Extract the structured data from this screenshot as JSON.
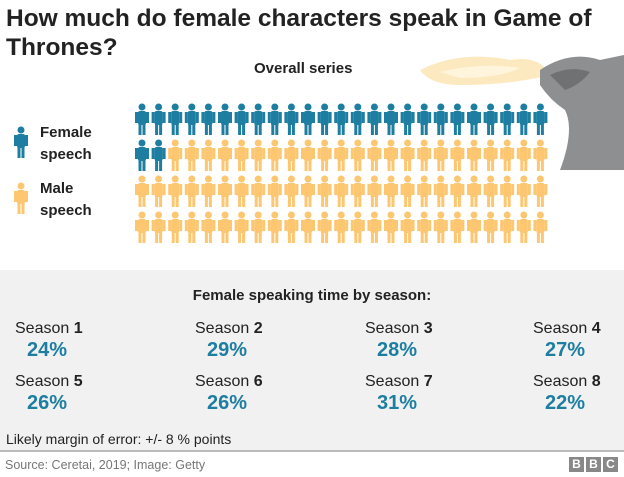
{
  "title": "How much do female characters speak in Game of Thrones?",
  "subtitle": "Overall series",
  "legend": {
    "female": "Female speech",
    "male": "Male speech"
  },
  "colors": {
    "female": "#1d7ea1",
    "male": "#fdc772"
  },
  "chart_data": {
    "type": "pictogram",
    "title": "Overall series",
    "total_icons": 100,
    "columns": 25,
    "rows": 4,
    "series": [
      {
        "name": "Female speech",
        "value": 27
      },
      {
        "name": "Male speech",
        "value": 73
      }
    ]
  },
  "panel": {
    "title": "Female speaking time by season:",
    "seasons": [
      {
        "label": "Season ",
        "num": "1",
        "pct": "24%"
      },
      {
        "label": "Season ",
        "num": "2",
        "pct": "29%"
      },
      {
        "label": "Season ",
        "num": "3",
        "pct": "28%"
      },
      {
        "label": "Season ",
        "num": "4",
        "pct": "27%"
      },
      {
        "label": "Season ",
        "num": "5",
        "pct": "26%"
      },
      {
        "label": "Season ",
        "num": "6",
        "pct": "26%"
      },
      {
        "label": "Season ",
        "num": "7",
        "pct": "31%"
      },
      {
        "label": "Season ",
        "num": "8",
        "pct": "22%"
      }
    ],
    "margin": "Likely margin of error: +/- 8 % points"
  },
  "footer": {
    "source": "Source: Ceretai, 2019; Image: Getty",
    "logo": [
      "B",
      "B",
      "C"
    ]
  }
}
